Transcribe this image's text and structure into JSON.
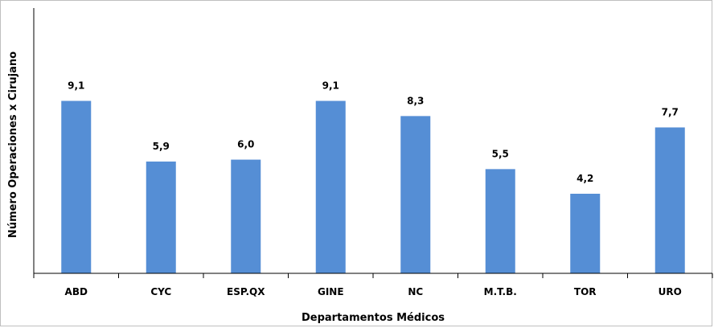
{
  "chart_data": {
    "type": "bar",
    "categories": [
      "ABD",
      "CYC",
      "ESP.QX",
      "GINE",
      "NC",
      "M.T.B.",
      "TOR",
      "URO"
    ],
    "values": [
      9.1,
      5.9,
      6.0,
      9.1,
      8.3,
      5.5,
      4.2,
      7.7
    ],
    "value_labels": [
      "9,1",
      "5,9",
      "6,0",
      "9,1",
      "8,3",
      "5,5",
      "4,2",
      "7,7"
    ],
    "xlabel": "Departamentos Médicos",
    "ylabel": "Número Operaciones x Cirujano",
    "ylim": [
      0,
      14
    ],
    "bar_color": "#558ED5",
    "grid": false,
    "legend": "none"
  }
}
